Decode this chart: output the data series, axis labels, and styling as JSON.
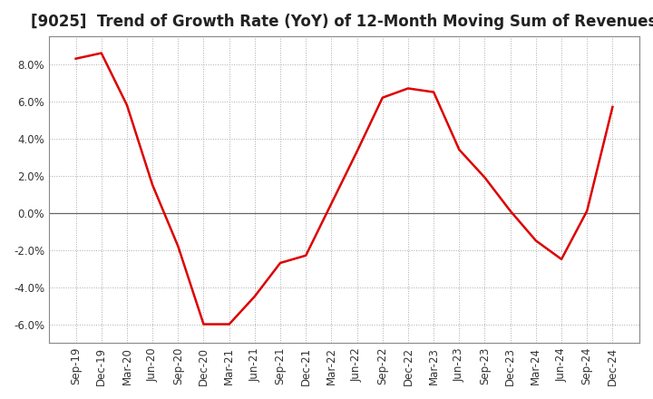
{
  "title": "[9025]  Trend of Growth Rate (YoY) of 12-Month Moving Sum of Revenues",
  "line_color": "#dd0000",
  "background_color": "#ffffff",
  "grid_color": "#aaaaaa",
  "zero_line_color": "#666666",
  "border_color": "#888888",
  "x_labels": [
    "Sep-19",
    "Dec-19",
    "Mar-20",
    "Jun-20",
    "Sep-20",
    "Dec-20",
    "Mar-21",
    "Jun-21",
    "Sep-21",
    "Dec-21",
    "Mar-22",
    "Jun-22",
    "Sep-22",
    "Dec-22",
    "Mar-23",
    "Jun-23",
    "Sep-23",
    "Dec-23",
    "Mar-24",
    "Jun-24",
    "Sep-24",
    "Dec-24"
  ],
  "y_values": [
    8.3,
    8.6,
    5.8,
    1.5,
    -1.8,
    -6.0,
    -6.0,
    -4.5,
    -2.7,
    -2.3,
    0.5,
    3.3,
    6.2,
    6.7,
    6.5,
    3.4,
    1.9,
    0.1,
    -1.5,
    -2.5,
    0.1,
    5.7
  ],
  "ylim": [
    -7.0,
    9.5
  ],
  "yticks": [
    -6.0,
    -4.0,
    -2.0,
    0.0,
    2.0,
    4.0,
    6.0,
    8.0
  ],
  "title_fontsize": 12,
  "tick_fontsize": 8.5,
  "line_width": 1.8
}
